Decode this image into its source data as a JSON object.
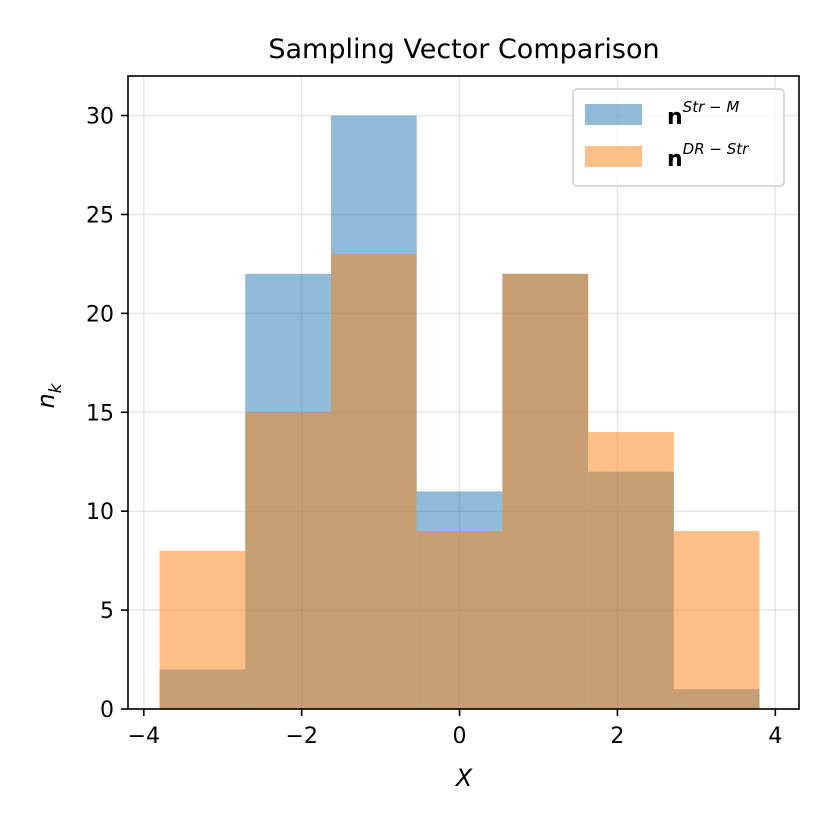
{
  "chart_data": {
    "type": "bar",
    "title": "Sampling Vector Comparison",
    "xlabel": "X",
    "ylabel": "n",
    "ylabel_subscript": "k",
    "xlim": [
      -4.2,
      4.3
    ],
    "ylim": [
      0,
      32
    ],
    "xticks": [
      -4,
      -2,
      0,
      2,
      4
    ],
    "xtick_labels": [
      "−4",
      "−2",
      "0",
      "2",
      "4"
    ],
    "yticks": [
      0,
      5,
      10,
      15,
      20,
      25,
      30
    ],
    "ytick_labels": [
      "0",
      "5",
      "10",
      "15",
      "20",
      "25",
      "30"
    ],
    "grid": true,
    "legend_position": "top-right",
    "bin_edges": [
      -3.8,
      -2.714,
      -1.629,
      -0.543,
      0.543,
      1.629,
      2.714,
      3.8
    ],
    "series": [
      {
        "name": "n^{Str-M}",
        "legend_base": "n",
        "legend_sup": "Str − M",
        "color": "#1f77b4",
        "opacity": 0.5,
        "values": [
          2,
          22,
          30,
          11,
          22,
          12,
          1
        ]
      },
      {
        "name": "n^{DR-Str}",
        "legend_base": "n",
        "legend_sup": "DR − Str",
        "color": "#ff7f0e",
        "opacity": 0.5,
        "values": [
          8,
          15,
          23,
          9,
          22,
          14,
          9
        ]
      }
    ]
  }
}
